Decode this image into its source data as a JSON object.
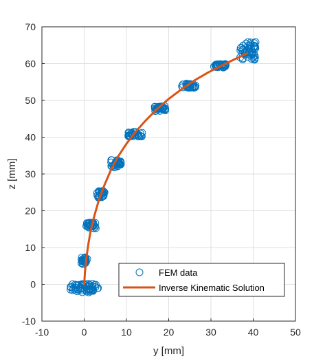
{
  "chart_data": {
    "type": "scatter",
    "xlabel": "y [mm]",
    "ylabel": "z [mm]",
    "xlim": [
      -10,
      50
    ],
    "ylim": [
      -10,
      70
    ],
    "xticks": [
      "-10",
      "0",
      "10",
      "20",
      "30",
      "40",
      "50"
    ],
    "yticks": [
      "-10",
      "0",
      "10",
      "20",
      "30",
      "40",
      "50",
      "60",
      "70"
    ],
    "grid": true,
    "legend_position": "bottom-right",
    "colors": {
      "fem": "#0072BD",
      "ik": "#D95319"
    },
    "series": [
      {
        "name": "FEM data",
        "kind": "markers",
        "marker": "circle-open",
        "clusters": [
          {
            "cx": 0,
            "cy": -1,
            "sx": 3.3,
            "sy": 1.2,
            "n": 60
          },
          {
            "cx": 0,
            "cy": 6.5,
            "sx": 0.8,
            "sy": 1.0,
            "n": 25
          },
          {
            "cx": 1.6,
            "cy": 16,
            "sx": 1.2,
            "sy": 0.8,
            "n": 30
          },
          {
            "cx": 4,
            "cy": 24.5,
            "sx": 1.0,
            "sy": 1.0,
            "n": 30
          },
          {
            "cx": 7.5,
            "cy": 32.8,
            "sx": 1.2,
            "sy": 1.0,
            "n": 30
          },
          {
            "cx": 12.2,
            "cy": 40.8,
            "sx": 1.8,
            "sy": 0.7,
            "n": 30
          },
          {
            "cx": 17.8,
            "cy": 47.8,
            "sx": 1.5,
            "sy": 0.7,
            "n": 30
          },
          {
            "cx": 24.8,
            "cy": 54.0,
            "sx": 1.7,
            "sy": 0.6,
            "n": 30
          },
          {
            "cx": 32.2,
            "cy": 59.4,
            "sx": 1.5,
            "sy": 0.5,
            "n": 30
          },
          {
            "cx": 38.6,
            "cy": 63.5,
            "sx": 2.0,
            "sy": 2.5,
            "n": 50
          }
        ]
      },
      {
        "name": "Inverse Kinematic Solution",
        "kind": "line",
        "x": [
          0,
          0.2,
          0.5,
          1.0,
          1.6,
          2.5,
          3.5,
          4.8,
          6.3,
          8.0,
          10.0,
          12.2,
          14.6,
          17.2,
          20.0,
          23.0,
          26.2,
          29.5,
          32.8,
          36.0,
          38.6
        ],
        "y": [
          0,
          3.5,
          7.0,
          11.0,
          15.0,
          19.0,
          23.0,
          27.0,
          31.0,
          34.7,
          38.2,
          41.5,
          44.6,
          47.6,
          50.4,
          53.0,
          55.5,
          57.7,
          59.6,
          61.4,
          62.8
        ]
      }
    ]
  }
}
